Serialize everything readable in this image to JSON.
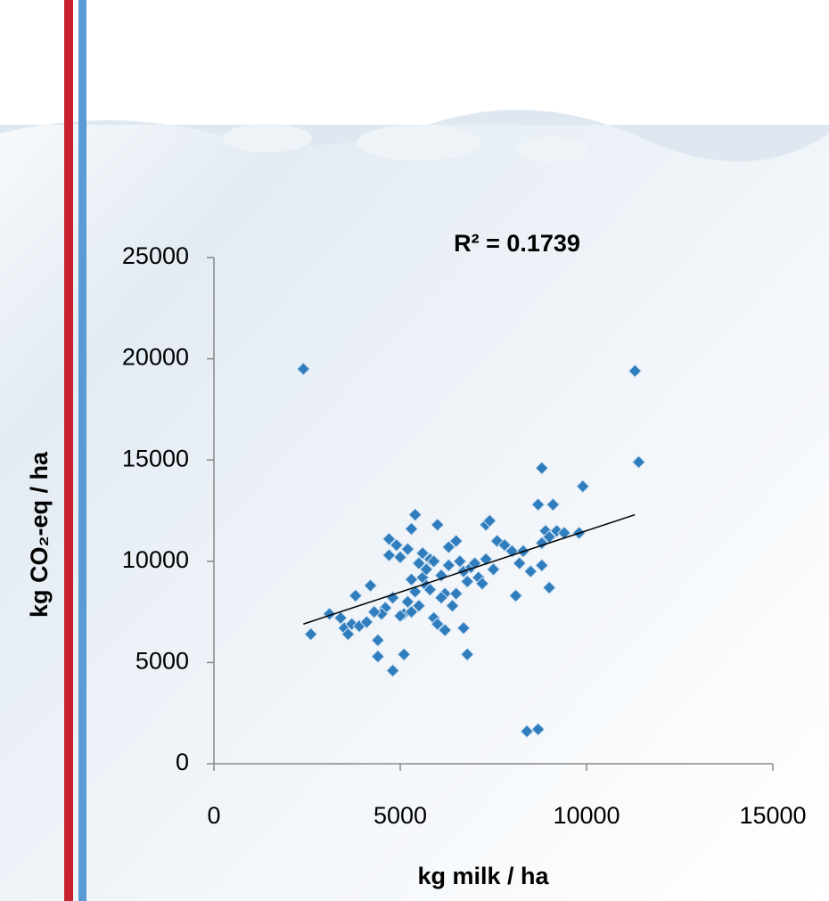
{
  "chart_data": {
    "type": "scatter",
    "annotation": "R² = 0.1739",
    "x_label": "kg milk / ha",
    "y_label": "kg CO₂-eq / ha",
    "color": "#2f7dbd",
    "xlim": [
      0,
      15000
    ],
    "xticks": [
      0,
      5000,
      10000,
      15000
    ],
    "ylim": [
      0,
      25000
    ],
    "yticks": [
      0,
      5000,
      10000,
      15000,
      20000,
      25000
    ],
    "x": [
      2400,
      2600,
      3100,
      3400,
      3500,
      3600,
      3700,
      3800,
      3900,
      4100,
      4200,
      4400,
      4400,
      4600,
      4700,
      4700,
      4800,
      4800,
      4900,
      5000,
      5100,
      5100,
      5200,
      5200,
      5300,
      5300,
      5400,
      5400,
      5500,
      5500,
      5600,
      5600,
      5700,
      5800,
      5800,
      5900,
      6000,
      6000,
      6100,
      6200,
      6200,
      6300,
      6300,
      6400,
      6500,
      6500,
      6600,
      6700,
      6700,
      6800,
      6800,
      6900,
      7000,
      7100,
      7200,
      7300,
      7300,
      7400,
      7500,
      7600,
      7800,
      8000,
      8100,
      8200,
      8300,
      8400,
      8500,
      8700,
      8700,
      8800,
      8800,
      8800,
      8900,
      9000,
      9000,
      9100,
      9200,
      9400,
      9800,
      9900,
      11300,
      11400,
      4500,
      5000,
      5700,
      6100,
      5300,
      4300,
      5900
    ],
    "values": [
      19500,
      6400,
      7400,
      7200,
      6700,
      6400,
      6900,
      8300,
      6800,
      7000,
      8800,
      6100,
      5300,
      7700,
      11100,
      10300,
      4600,
      8200,
      10800,
      10200,
      5400,
      7400,
      8000,
      10600,
      11600,
      9100,
      12300,
      8500,
      9900,
      7800,
      10400,
      9200,
      8800,
      10100,
      8600,
      7200,
      11800,
      6900,
      9300,
      6600,
      8400,
      10700,
      9800,
      7800,
      8400,
      11000,
      10000,
      9500,
      6700,
      9000,
      5400,
      9700,
      9900,
      9200,
      8900,
      11800,
      10100,
      12000,
      9600,
      11000,
      10800,
      10500,
      8300,
      9900,
      10500,
      1600,
      9500,
      12800,
      1700,
      14600,
      10900,
      9800,
      11500,
      11200,
      8700,
      12800,
      11500,
      11400,
      11400,
      13700,
      19400,
      14900,
      7400,
      7300,
      9600,
      8200,
      7500,
      7500,
      10000
    ],
    "trendline": {
      "x": [
        2400,
        11300
      ],
      "y": [
        6900,
        12300
      ]
    }
  }
}
